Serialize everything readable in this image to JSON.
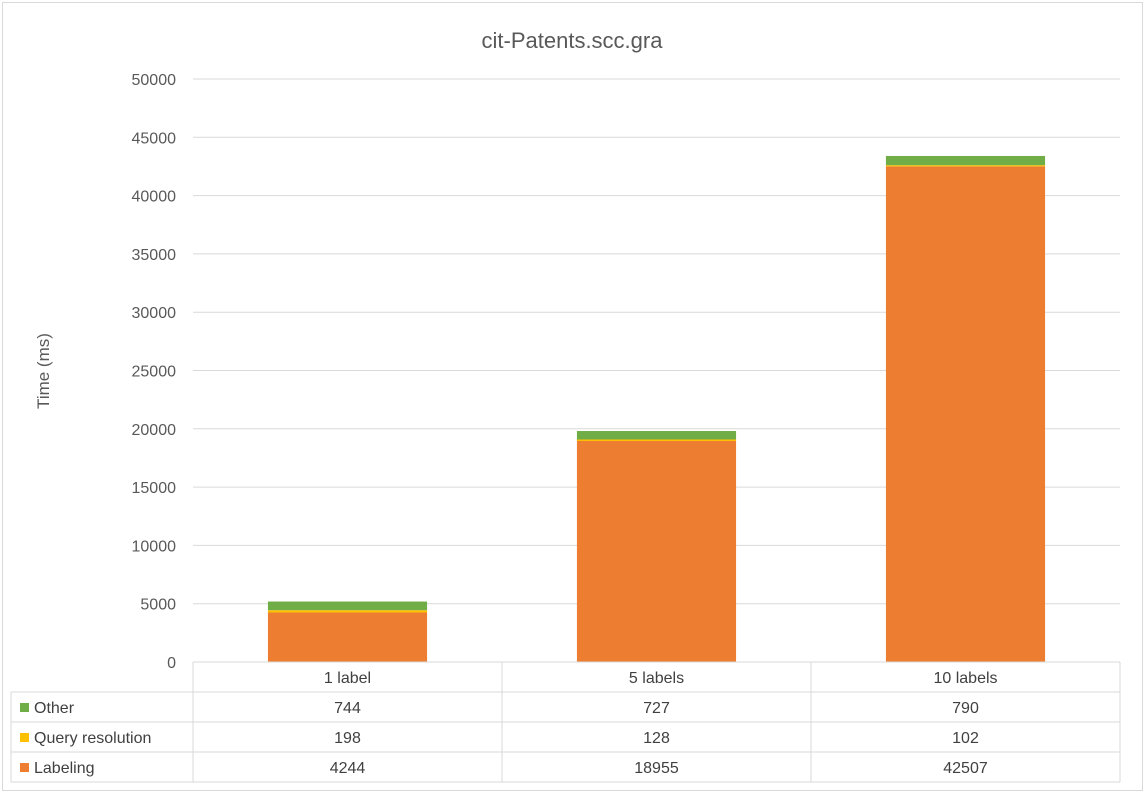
{
  "chart_data": {
    "type": "bar",
    "stacked": true,
    "title": "cit-Patents.scc.gra",
    "ylabel": "Time (ms)",
    "xlabel": "",
    "ylim": [
      0,
      50000
    ],
    "yticks": [
      0,
      5000,
      10000,
      15000,
      20000,
      25000,
      30000,
      35000,
      40000,
      45000,
      50000
    ],
    "grid": true,
    "legend": "data table below plot",
    "categories": [
      "1 label",
      "5 labels",
      "10 labels"
    ],
    "series": [
      {
        "name": "Labeling",
        "values": [
          4244,
          18955,
          42507
        ],
        "color": "#ed7d31"
      },
      {
        "name": "Query resolution",
        "values": [
          198,
          128,
          102
        ],
        "color": "#ffc000"
      },
      {
        "name": "Other",
        "values": [
          744,
          727,
          790
        ],
        "color": "#70ad47"
      }
    ],
    "table_rows": [
      "Other",
      "Query resolution",
      "Labeling"
    ]
  }
}
